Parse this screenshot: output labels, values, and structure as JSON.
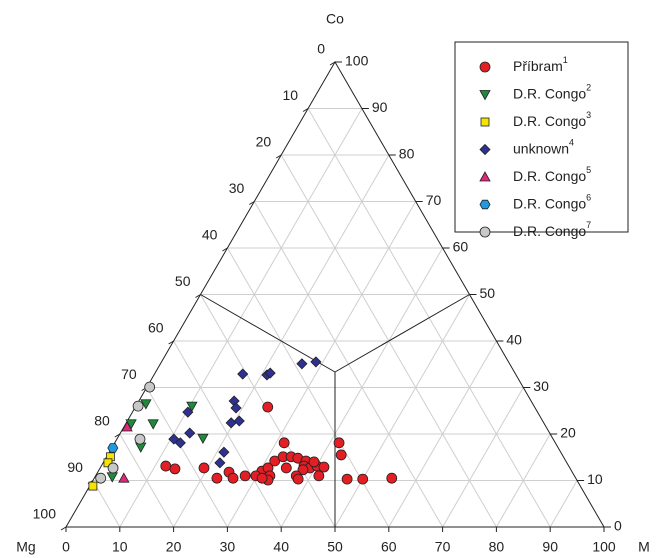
{
  "chart_data": {
    "type": "ternary",
    "top_label": "Co",
    "left_label": "Mg",
    "right_label": "M",
    "co_ticks": [
      0,
      10,
      20,
      30,
      40,
      50,
      60,
      70,
      80,
      90,
      100
    ],
    "m_ticks": [
      0,
      10,
      20,
      30,
      40,
      50,
      60,
      70,
      80,
      90,
      100
    ],
    "mg_ticks": [
      0,
      10,
      20,
      30,
      40,
      50,
      60,
      70,
      80,
      90,
      100
    ],
    "grid": true,
    "legend": "top-right",
    "series": [
      {
        "name": "Příbram",
        "note": "1",
        "marker": "circle",
        "color": "#e31e24",
        "co": [
          13.1,
          12.5,
          12.7,
          11.8,
          10.5,
          10.5,
          12.0,
          12.7,
          14.2,
          15.1,
          15.1,
          14.8,
          14.2,
          13.1,
          12.7,
          13.1,
          12.9,
          12.3,
          12.7,
          11.0,
          10.1,
          11.0,
          11.0,
          11.0,
          10.3,
          18.1,
          15.5,
          11.0,
          10.3,
          10.3,
          10.5,
          18.1,
          25.8,
          10.5,
          14.0
        ],
        "m": [
          12.0,
          14.0,
          19.3,
          24.4,
          22.8,
          25.8,
          30.4,
          31.2,
          31.7,
          32.8,
          34.3,
          35.7,
          37.5,
          37.7,
          39.0,
          40.1,
          41.5,
          37.9,
          34.6,
          32.4,
          32.5,
          27.8,
          29.8,
          37.3,
          38.0,
          41.7,
          43.4,
          41.5,
          47.1,
          50.0,
          55.3,
          31.5,
          24.6,
          31.2,
          39.1
        ]
      },
      {
        "name": "D.R. Congo",
        "note": "2",
        "marker": "triangle-down",
        "color": "#1f8a3c",
        "co": [
          26.5,
          26.0,
          22.2,
          22.2,
          19.1,
          17.2,
          10.8
        ],
        "m": [
          1.6,
          10.4,
          1.0,
          5.1,
          15.9,
          5.3,
          3.2
        ]
      },
      {
        "name": "D.R. Congo",
        "note": "3",
        "marker": "square",
        "color": "#f5e400",
        "co": [
          15.1,
          13.8,
          8.8
        ],
        "m": [
          0.7,
          0.9,
          0.6
        ]
      },
      {
        "name": "unknown",
        "note": "4",
        "marker": "diamond",
        "color": "#2e3192",
        "co": [
          35.1,
          35.5,
          32.9,
          32.7,
          33.1,
          27.1,
          25.6,
          24.7,
          18.9,
          18.1,
          20.2,
          22.4,
          22.8,
          16.1,
          13.8
        ],
        "m": [
          26.3,
          28.7,
          16.4,
          21.0,
          21.4,
          17.7,
          18.8,
          10.3,
          10.6,
          12.2,
          12.9,
          19.5,
          20.8,
          21.3,
          21.7
        ]
      },
      {
        "name": "D.R. Congo",
        "note": "5",
        "marker": "triangle-up",
        "color": "#e0287a",
        "co": [
          21.5,
          10.5
        ],
        "m": [
          0.6,
          5.5
        ]
      },
      {
        "name": "D.R. Congo",
        "note": "6",
        "marker": "hexagon",
        "color": "#1e9be0",
        "co": [
          17.0
        ],
        "m": [
          0.2
        ]
      },
      {
        "name": "D.R. Congo",
        "note": "7",
        "marker": "circle",
        "color": "#c8c8c8",
        "co": [
          30.1,
          26.0,
          18.9,
          12.7,
          10.5
        ],
        "m": [
          0.5,
          0.4,
          4.3,
          2.4,
          1.2
        ]
      }
    ]
  }
}
